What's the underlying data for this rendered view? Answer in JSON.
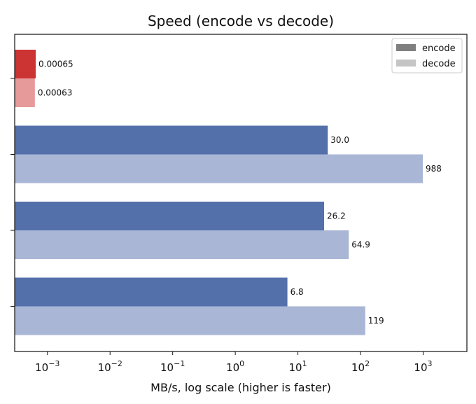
{
  "chart_data": {
    "type": "bar",
    "orientation": "horizontal",
    "title": "Speed (encode vs decode)",
    "xlabel": "MB/s, log scale  (higher is faster)",
    "ylabel": "",
    "x_scale": "log",
    "xlim": [
      0.0003,
      5000
    ],
    "x_ticks": [
      {
        "value": 0.001,
        "base": "10",
        "exp": "−3"
      },
      {
        "value": 0.01,
        "base": "10",
        "exp": "−2"
      },
      {
        "value": 0.1,
        "base": "10",
        "exp": "−1"
      },
      {
        "value": 1,
        "base": "10",
        "exp": "0"
      },
      {
        "value": 10,
        "base": "10",
        "exp": "1"
      },
      {
        "value": 100,
        "base": "10",
        "exp": "2"
      },
      {
        "value": 1000,
        "base": "10",
        "exp": "3"
      }
    ],
    "grid": false,
    "legend_position": "top-right",
    "legend": [
      {
        "label": "encode",
        "color": "#7f7f7f"
      },
      {
        "label": "decode",
        "color": "#c5c5c5"
      }
    ],
    "groups": [
      {
        "encode": {
          "value": 0.00065,
          "label": "0.00065",
          "color": "#cc3333"
        },
        "decode": {
          "value": 0.00063,
          "label": "0.00063",
          "color": "#e69a9a"
        }
      },
      {
        "encode": {
          "value": 30.0,
          "label": "30.0",
          "color": "#5470ab"
        },
        "decode": {
          "value": 988,
          "label": "988",
          "color": "#a9b6d6"
        }
      },
      {
        "encode": {
          "value": 26.2,
          "label": "26.2",
          "color": "#5470ab"
        },
        "decode": {
          "value": 64.9,
          "label": "64.9",
          "color": "#a9b6d6"
        }
      },
      {
        "encode": {
          "value": 6.8,
          "label": "6.8",
          "color": "#5470ab"
        },
        "decode": {
          "value": 119,
          "label": "119",
          "color": "#a9b6d6"
        }
      }
    ]
  }
}
